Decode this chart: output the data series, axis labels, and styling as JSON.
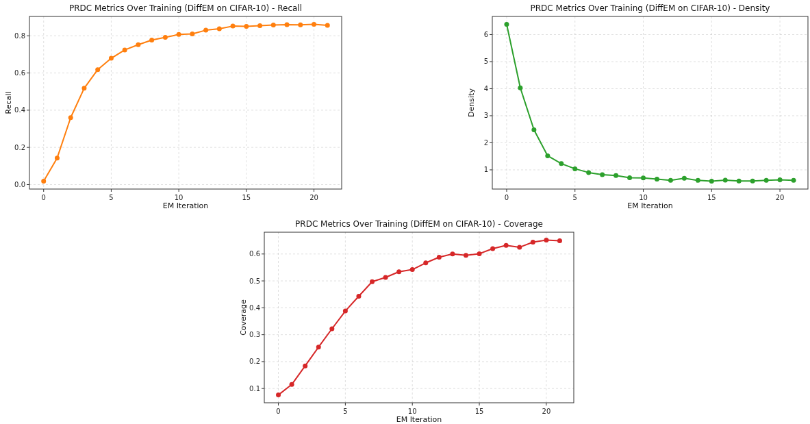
{
  "chart_data": [
    {
      "type": "line",
      "title": "PRDC Metrics Over Training (DiffEM on CIFAR-10) - Recall",
      "xlabel": "EM Iteration",
      "ylabel": "Recall",
      "x": [
        0,
        1,
        2,
        3,
        4,
        5,
        6,
        7,
        8,
        9,
        10,
        11,
        12,
        13,
        14,
        15,
        16,
        17,
        18,
        19,
        20,
        21
      ],
      "series": [
        {
          "color": "#ff7f0e",
          "values": [
            0.018,
            0.143,
            0.36,
            0.518,
            0.618,
            0.679,
            0.724,
            0.752,
            0.777,
            0.792,
            0.807,
            0.81,
            0.83,
            0.838,
            0.852,
            0.851,
            0.854,
            0.858,
            0.86,
            0.859,
            0.862,
            0.856
          ]
        }
      ],
      "xlim": [
        -1.05,
        22.05
      ],
      "xticks": [
        0,
        5,
        10,
        15,
        20
      ],
      "ylim": [
        -0.024,
        0.904
      ],
      "yticks": [
        {
          "value": 0,
          "label": "0.0"
        },
        {
          "value": 0.2,
          "label": "0.2"
        },
        {
          "value": 0.4,
          "label": "0.4"
        },
        {
          "value": 0.6,
          "label": "0.6"
        },
        {
          "value": 0.8,
          "label": "0.8"
        }
      ],
      "grid": true,
      "marker": "circle",
      "line_style": "solid"
    },
    {
      "type": "line",
      "title": "PRDC Metrics Over Training (DiffEM on CIFAR-10) - Density",
      "xlabel": "EM Iteration",
      "ylabel": "Density",
      "x": [
        0,
        1,
        2,
        3,
        4,
        5,
        6,
        7,
        8,
        9,
        10,
        11,
        12,
        13,
        14,
        15,
        16,
        17,
        18,
        19,
        20,
        21
      ],
      "series": [
        {
          "color": "#2ca02c",
          "values": [
            6.38,
            4.03,
            2.48,
            1.52,
            1.23,
            1.04,
            0.9,
            0.82,
            0.79,
            0.71,
            0.7,
            0.66,
            0.61,
            0.69,
            0.61,
            0.58,
            0.62,
            0.59,
            0.59,
            0.61,
            0.63,
            0.61
          ]
        }
      ],
      "xlim": [
        -1.05,
        22.05
      ],
      "xticks": [
        0,
        5,
        10,
        15,
        20
      ],
      "ylim": [
        0.29,
        6.67
      ],
      "yticks": [
        1,
        2,
        3,
        4,
        5,
        6
      ],
      "grid": true,
      "marker": "circle",
      "line_style": "solid"
    },
    {
      "type": "line",
      "title": "PRDC Metrics Over Training (DiffEM on CIFAR-10) - Coverage",
      "xlabel": "EM Iteration",
      "ylabel": "Coverage",
      "x": [
        0,
        1,
        2,
        3,
        4,
        5,
        6,
        7,
        8,
        9,
        10,
        11,
        12,
        13,
        14,
        15,
        16,
        17,
        18,
        19,
        20,
        21
      ],
      "series": [
        {
          "color": "#d62728",
          "values": [
            0.076,
            0.115,
            0.184,
            0.254,
            0.322,
            0.388,
            0.443,
            0.497,
            0.513,
            0.534,
            0.542,
            0.567,
            0.588,
            0.6,
            0.595,
            0.601,
            0.62,
            0.632,
            0.625,
            0.644,
            0.652,
            0.649
          ]
        }
      ],
      "xlim": [
        -1.05,
        22.05
      ],
      "xticks": [
        0,
        5,
        10,
        15,
        20
      ],
      "ylim": [
        0.047,
        0.681
      ],
      "yticks": [
        0.1,
        0.2,
        0.3,
        0.4,
        0.5,
        0.6
      ],
      "grid": true,
      "marker": "circle",
      "line_style": "solid"
    }
  ]
}
